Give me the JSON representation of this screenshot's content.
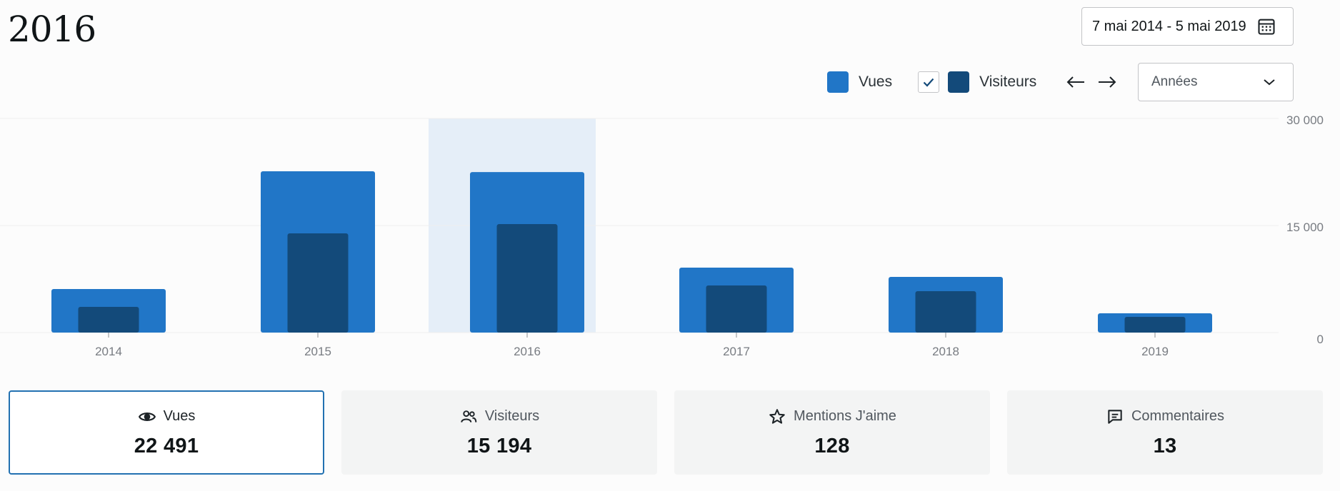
{
  "header": {
    "period_title": "2016",
    "date_range": "7 mai 2014 - 5 mai 2019"
  },
  "legend": {
    "views_label": "Vues",
    "visitors_label": "Visiteurs",
    "visitors_checked": true
  },
  "interval_select": {
    "selected": "Années"
  },
  "colors": {
    "views": "#2176c7",
    "visitors": "#134a7a",
    "highlight": "#e5eef8",
    "grid": "#eeeeee",
    "axis_text": "#787c82"
  },
  "chart_data": {
    "type": "bar",
    "categories": [
      "2014",
      "2015",
      "2016",
      "2017",
      "2018",
      "2019"
    ],
    "series": [
      {
        "name": "Vues",
        "values": [
          6100,
          22600,
          22491,
          9100,
          7800,
          2700
        ]
      },
      {
        "name": "Visiteurs",
        "values": [
          3600,
          13900,
          15194,
          6600,
          5800,
          2200
        ]
      }
    ],
    "ylim": [
      0,
      30000
    ],
    "yticks": [
      0,
      15000,
      30000
    ],
    "ytick_labels": [
      "0",
      "15 000",
      "30 000"
    ],
    "selected_category": "2016",
    "grid": true,
    "title": "",
    "xlabel": "",
    "ylabel": ""
  },
  "stats": [
    {
      "label": "Vues",
      "value": "22 491",
      "icon": "eye-icon",
      "active": true
    },
    {
      "label": "Visiteurs",
      "value": "15 194",
      "icon": "people-icon",
      "active": false
    },
    {
      "label": "Mentions J'aime",
      "value": "128",
      "icon": "star-icon",
      "active": false
    },
    {
      "label": "Commentaires",
      "value": "13",
      "icon": "comment-icon",
      "active": false
    }
  ]
}
